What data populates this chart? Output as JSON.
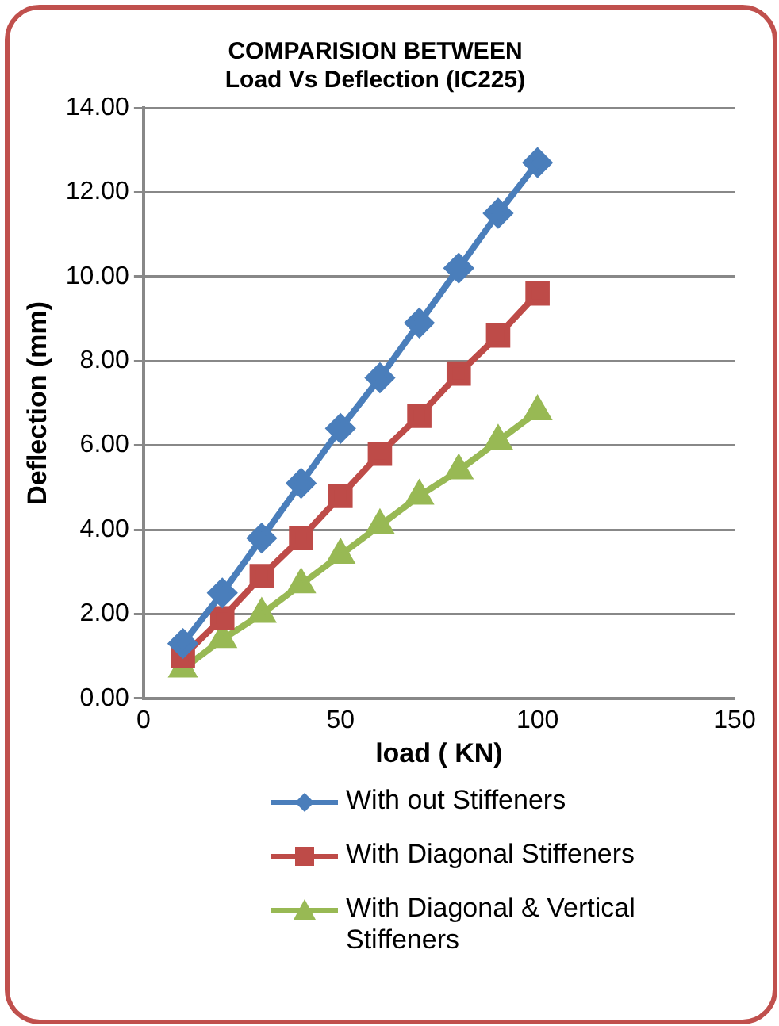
{
  "chart_data": {
    "type": "line",
    "title": [
      "COMPARISION BETWEEN",
      "Load Vs Deflection (IC225)"
    ],
    "xlabel": "load ( KN)",
    "ylabel": "Deflection (mm)",
    "x": [
      10,
      20,
      30,
      40,
      50,
      60,
      70,
      80,
      90,
      100
    ],
    "series": [
      {
        "name": "With out Stiffeners",
        "color": "#4a7ebb",
        "marker": "diamond",
        "values": [
          1.3,
          2.5,
          3.8,
          5.1,
          6.4,
          7.6,
          8.9,
          10.2,
          11.5,
          12.7
        ]
      },
      {
        "name": "With Diagonal Stiffeners",
        "color": "#be4b48",
        "marker": "square",
        "values": [
          1.0,
          1.9,
          2.9,
          3.8,
          4.8,
          5.8,
          6.7,
          7.7,
          8.6,
          9.6
        ]
      },
      {
        "name": "With Diagonal & Vertical Stiffeners",
        "color": "#98b954",
        "marker": "triangle",
        "values": [
          0.7,
          1.4,
          2.0,
          2.7,
          3.4,
          4.1,
          4.8,
          5.4,
          6.1,
          6.8
        ]
      }
    ],
    "xlim": [
      0,
      150
    ],
    "xticks": [
      0,
      50,
      100,
      150
    ],
    "ylim": [
      0,
      14
    ],
    "yticks": [
      {
        "value": 0,
        "label": "0.00"
      },
      {
        "value": 2,
        "label": "2.00"
      },
      {
        "value": 4,
        "label": "4.00"
      },
      {
        "value": 6,
        "label": "6.00"
      },
      {
        "value": 8,
        "label": "8.00"
      },
      {
        "value": 10,
        "label": "10.00"
      },
      {
        "value": 12,
        "label": "12.00"
      },
      {
        "value": 14,
        "label": "14.00"
      }
    ],
    "grid": "y",
    "legend": "bottom",
    "line_style": "solid"
  }
}
